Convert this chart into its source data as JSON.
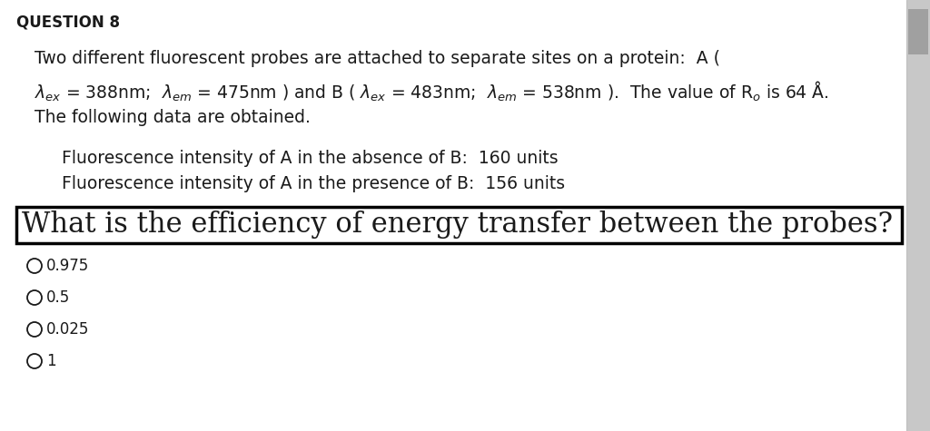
{
  "background_color": "#e8e8e8",
  "page_background": "#ffffff",
  "question_label": "QUESTION 8",
  "line1": "Two different fluorescent probes are attached to separate sites on a protein:  A (",
  "line2_math": "$\\lambda_{ex}$ = 388nm;  $\\lambda_{em}$ = 475nm ) and B ( $\\lambda_{ex}$ = 483nm;  $\\lambda_{em}$ = 538nm ).  The value of R$_{o}$ is 64 Å.",
  "line3": "The following data are obtained.",
  "data_line1": "Fluorescence intensity of A in the absence of B:  160 units",
  "data_line2": "Fluorescence intensity of A in the presence of B:  156 units",
  "question_box_text": "What is the efficiency of energy transfer between the probes?",
  "options": [
    "0.975",
    "0.5",
    "0.025",
    "1"
  ],
  "text_color": "#1a1a1a",
  "box_border_color": "#000000",
  "font_size_body": 13.5,
  "font_size_question_box": 22,
  "font_size_options": 12,
  "font_size_header": 12,
  "scrollbar_color": "#c8c8c8",
  "scrollbar_handle_color": "#a0a0a0"
}
